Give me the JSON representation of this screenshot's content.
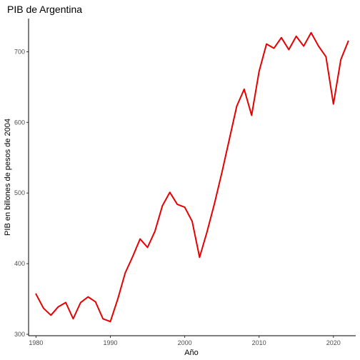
{
  "chart_data": {
    "type": "line",
    "title": "PIB de Argentina",
    "xlabel": "Año",
    "ylabel": "PIB en billones de pesos de 2004",
    "xlim": [
      1979,
      2023
    ],
    "ylim": [
      298,
      747
    ],
    "x_ticks": [
      1980,
      1990,
      2000,
      2010,
      2020
    ],
    "y_ticks": [
      300,
      400,
      500,
      600,
      700
    ],
    "x_tick_labels": [
      "1980",
      "1990",
      "2000",
      "2010",
      "2020"
    ],
    "y_tick_labels": [
      "300",
      "400",
      "500",
      "600",
      "700"
    ],
    "grid": false,
    "legend": "none",
    "line_color": "#e60000",
    "series": [
      {
        "x": [
          1980,
          1981,
          1982,
          1983,
          1984,
          1985,
          1986,
          1987,
          1988,
          1989,
          1990,
          1991,
          1992,
          1993,
          1994,
          1995,
          1996,
          1997,
          1998,
          1999,
          2000,
          2001,
          2002,
          2003,
          2004,
          2005,
          2006,
          2007,
          2008,
          2009,
          2010,
          2011,
          2012,
          2013,
          2014,
          2015,
          2016,
          2017,
          2018,
          2019,
          2020,
          2021,
          2022
        ],
        "values": [
          357,
          337,
          327,
          339,
          345,
          322,
          345,
          353,
          346,
          322,
          318,
          350,
          387,
          410,
          435,
          423,
          446,
          482,
          501,
          484,
          480,
          460,
          409,
          445,
          485,
          529,
          576,
          623,
          647,
          610,
          672,
          711,
          705,
          720,
          703,
          722,
          708,
          727,
          708,
          693,
          626,
          689,
          715
        ]
      }
    ]
  }
}
